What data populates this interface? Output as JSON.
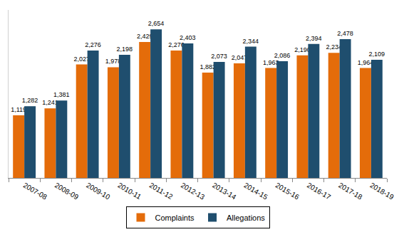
{
  "chart_data": {
    "type": "bar",
    "categories": [
      "2007-08",
      "2008-09",
      "2009-10",
      "2010-11",
      "2011-12",
      "2012-13",
      "2013-14",
      "2014-15",
      "2015-16",
      "2016-17",
      "2017-18",
      "2018-19"
    ],
    "series": [
      {
        "name": "Complaints",
        "color": "#E46C0A",
        "values": [
          1119,
          1241,
          2027,
          1978,
          2429,
          2276,
          1882,
          2047,
          1963,
          2190,
          2234,
          1964
        ],
        "value_labels": [
          "1,119",
          "1,241",
          "2,027",
          "1,978",
          "2,429",
          "2,276",
          "1,882",
          "2,047",
          "1,963",
          "2,190",
          "2,234",
          "1,964"
        ]
      },
      {
        "name": "Allegations",
        "color": "#1F4E6E",
        "values": [
          1282,
          1381,
          2276,
          2198,
          2654,
          2403,
          2073,
          2344,
          2086,
          2394,
          2478,
          2109
        ],
        "value_labels": [
          "1,282",
          "1,381",
          "2,276",
          "2,198",
          "2,654",
          "2,403",
          "2,073",
          "2,344",
          "2,086",
          "2,394",
          "2,478",
          "2,109"
        ]
      }
    ],
    "ylim": [
      0,
      3000
    ],
    "yticks": [],
    "grid": false,
    "legend": "bottom",
    "data_labels": true,
    "tick_labels": "x"
  }
}
